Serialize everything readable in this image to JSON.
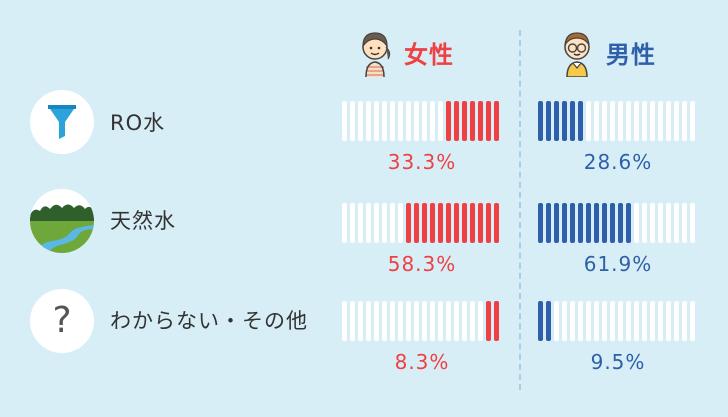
{
  "chart_data": {
    "type": "bar",
    "columns": [
      {
        "key": "female",
        "label": "女性",
        "color": "#ef4043"
      },
      {
        "key": "male",
        "label": "男性",
        "color": "#2f5faa"
      }
    ],
    "categories": [
      "RO水",
      "天然水",
      "わからない・その他"
    ],
    "series": [
      {
        "name": "女性",
        "values": [
          33.3,
          58.3,
          8.3
        ],
        "labels": [
          "33.3%",
          "58.3%",
          "8.3%"
        ]
      },
      {
        "name": "男性",
        "values": [
          28.6,
          61.9,
          9.5
        ],
        "labels": [
          "28.6%",
          "61.9%",
          "9.5%"
        ]
      }
    ],
    "ylim": [
      0,
      100
    ],
    "segments": 20,
    "empty_color": "#ffffff"
  },
  "rows": [
    {
      "label": "RO水",
      "icon": "funnel-icon"
    },
    {
      "label": "天然水",
      "icon": "landscape-icon"
    },
    {
      "label": "わからない・その他",
      "icon": "question-icon"
    }
  ],
  "headers": {
    "female": "女性",
    "male": "男性"
  },
  "icons": {
    "female_avatar": "woman-avatar-icon",
    "male_avatar": "man-avatar-icon"
  },
  "question_mark": "?"
}
